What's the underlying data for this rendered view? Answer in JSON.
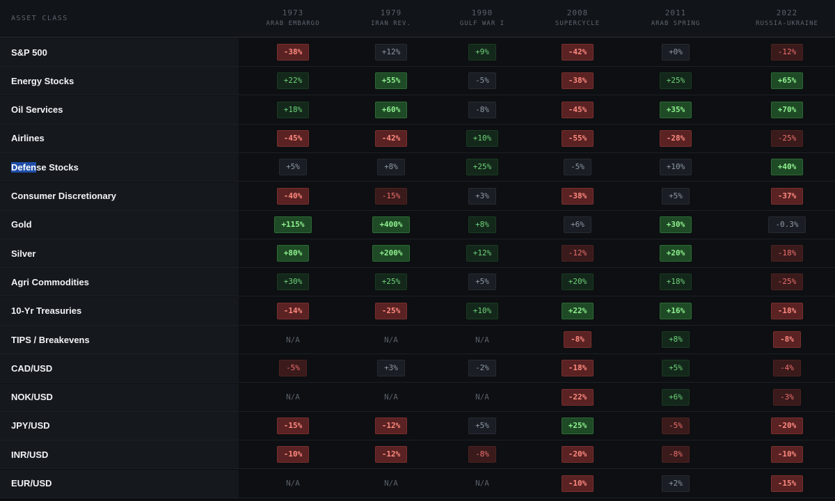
{
  "header": {
    "asset_class_label": "ASSET CLASS",
    "columns": [
      {
        "year": "1973",
        "event": "ARAB EMBARGO"
      },
      {
        "year": "1979",
        "event": "IRAN REV."
      },
      {
        "year": "1990",
        "event": "GULF WAR I"
      },
      {
        "year": "2008",
        "event": "SUPERCYCLE"
      },
      {
        "year": "2011",
        "event": "ARAB SPRING"
      },
      {
        "year": "2022",
        "event": "RUSSIA-UKRAINE"
      }
    ]
  },
  "selection": {
    "row": "Defense Stocks",
    "selected_text": "Defen"
  },
  "colors": {
    "strong_positive": "#8ff28f",
    "positive": "#6fd37a",
    "neutral": "#8f98a3",
    "negative": "#f07070",
    "strong_negative": "#ff8a80",
    "selection": "#1f4ea8"
  },
  "rows": [
    {
      "label": "S&P 500",
      "cells": [
        {
          "text": "-38%",
          "tone": "bigneg"
        },
        {
          "text": "+12%",
          "tone": "neu"
        },
        {
          "text": "+9%",
          "tone": "pos"
        },
        {
          "text": "-42%",
          "tone": "bigneg"
        },
        {
          "text": "+0%",
          "tone": "neu"
        },
        {
          "text": "-12%",
          "tone": "neg"
        }
      ]
    },
    {
      "label": "Energy Stocks",
      "cells": [
        {
          "text": "+22%",
          "tone": "pos"
        },
        {
          "text": "+55%",
          "tone": "bigpos"
        },
        {
          "text": "-5%",
          "tone": "neu"
        },
        {
          "text": "-38%",
          "tone": "bigneg"
        },
        {
          "text": "+25%",
          "tone": "pos"
        },
        {
          "text": "+65%",
          "tone": "bigpos"
        }
      ]
    },
    {
      "label": "Oil Services",
      "cells": [
        {
          "text": "+18%",
          "tone": "pos"
        },
        {
          "text": "+60%",
          "tone": "bigpos"
        },
        {
          "text": "-8%",
          "tone": "neu"
        },
        {
          "text": "-45%",
          "tone": "bigneg"
        },
        {
          "text": "+35%",
          "tone": "bigpos"
        },
        {
          "text": "+70%",
          "tone": "bigpos"
        }
      ]
    },
    {
      "label": "Airlines",
      "cells": [
        {
          "text": "-45%",
          "tone": "bigneg"
        },
        {
          "text": "-42%",
          "tone": "bigneg"
        },
        {
          "text": "+10%",
          "tone": "pos"
        },
        {
          "text": "-55%",
          "tone": "bigneg"
        },
        {
          "text": "-28%",
          "tone": "bigneg"
        },
        {
          "text": "-25%",
          "tone": "neg"
        }
      ]
    },
    {
      "label": "Defense Stocks",
      "cells": [
        {
          "text": "+5%",
          "tone": "neu"
        },
        {
          "text": "+8%",
          "tone": "neu"
        },
        {
          "text": "+25%",
          "tone": "pos"
        },
        {
          "text": "-5%",
          "tone": "neu"
        },
        {
          "text": "+10%",
          "tone": "neu"
        },
        {
          "text": "+40%",
          "tone": "bigpos"
        }
      ]
    },
    {
      "label": "Consumer Discretionary",
      "cells": [
        {
          "text": "-40%",
          "tone": "bigneg"
        },
        {
          "text": "-15%",
          "tone": "neg"
        },
        {
          "text": "+3%",
          "tone": "neu"
        },
        {
          "text": "-38%",
          "tone": "bigneg"
        },
        {
          "text": "+5%",
          "tone": "neu"
        },
        {
          "text": "-37%",
          "tone": "bigneg"
        }
      ]
    },
    {
      "label": "Gold",
      "cells": [
        {
          "text": "+115%",
          "tone": "bigpos"
        },
        {
          "text": "+400%",
          "tone": "bigpos"
        },
        {
          "text": "+8%",
          "tone": "pos"
        },
        {
          "text": "+6%",
          "tone": "neu"
        },
        {
          "text": "+30%",
          "tone": "bigpos"
        },
        {
          "text": "-0.3%",
          "tone": "neu"
        }
      ]
    },
    {
      "label": "Silver",
      "cells": [
        {
          "text": "+80%",
          "tone": "bigpos"
        },
        {
          "text": "+200%",
          "tone": "bigpos"
        },
        {
          "text": "+12%",
          "tone": "pos"
        },
        {
          "text": "-12%",
          "tone": "neg"
        },
        {
          "text": "+20%",
          "tone": "bigpos"
        },
        {
          "text": "-18%",
          "tone": "neg"
        }
      ]
    },
    {
      "label": "Agri Commodities",
      "cells": [
        {
          "text": "+30%",
          "tone": "pos"
        },
        {
          "text": "+25%",
          "tone": "pos"
        },
        {
          "text": "+5%",
          "tone": "neu"
        },
        {
          "text": "+20%",
          "tone": "pos"
        },
        {
          "text": "+18%",
          "tone": "pos"
        },
        {
          "text": "-25%",
          "tone": "neg"
        }
      ]
    },
    {
      "label": "10-Yr Treasuries",
      "cells": [
        {
          "text": "-14%",
          "tone": "bigneg"
        },
        {
          "text": "-25%",
          "tone": "bigneg"
        },
        {
          "text": "+10%",
          "tone": "pos"
        },
        {
          "text": "+22%",
          "tone": "bigpos"
        },
        {
          "text": "+16%",
          "tone": "bigpos"
        },
        {
          "text": "-18%",
          "tone": "bigneg"
        }
      ]
    },
    {
      "label": "TIPS / Breakevens",
      "cells": [
        {
          "text": "N/A",
          "tone": "na"
        },
        {
          "text": "N/A",
          "tone": "na"
        },
        {
          "text": "N/A",
          "tone": "na"
        },
        {
          "text": "-8%",
          "tone": "bigneg"
        },
        {
          "text": "+8%",
          "tone": "pos"
        },
        {
          "text": "-8%",
          "tone": "bigneg"
        }
      ]
    },
    {
      "label": "CAD/USD",
      "cells": [
        {
          "text": "-5%",
          "tone": "neg"
        },
        {
          "text": "+3%",
          "tone": "neu"
        },
        {
          "text": "-2%",
          "tone": "neu"
        },
        {
          "text": "-18%",
          "tone": "bigneg"
        },
        {
          "text": "+5%",
          "tone": "pos"
        },
        {
          "text": "-4%",
          "tone": "neg"
        }
      ]
    },
    {
      "label": "NOK/USD",
      "cells": [
        {
          "text": "N/A",
          "tone": "na"
        },
        {
          "text": "N/A",
          "tone": "na"
        },
        {
          "text": "N/A",
          "tone": "na"
        },
        {
          "text": "-22%",
          "tone": "bigneg"
        },
        {
          "text": "+6%",
          "tone": "pos"
        },
        {
          "text": "-3%",
          "tone": "neg"
        }
      ]
    },
    {
      "label": "JPY/USD",
      "cells": [
        {
          "text": "-15%",
          "tone": "bigneg"
        },
        {
          "text": "-12%",
          "tone": "bigneg"
        },
        {
          "text": "+5%",
          "tone": "neu"
        },
        {
          "text": "+25%",
          "tone": "bigpos"
        },
        {
          "text": "-5%",
          "tone": "neg"
        },
        {
          "text": "-20%",
          "tone": "bigneg"
        }
      ]
    },
    {
      "label": "INR/USD",
      "cells": [
        {
          "text": "-10%",
          "tone": "bigneg"
        },
        {
          "text": "-12%",
          "tone": "bigneg"
        },
        {
          "text": "-8%",
          "tone": "neg"
        },
        {
          "text": "-20%",
          "tone": "bigneg"
        },
        {
          "text": "-8%",
          "tone": "neg"
        },
        {
          "text": "-10%",
          "tone": "bigneg"
        }
      ]
    },
    {
      "label": "EUR/USD",
      "cells": [
        {
          "text": "N/A",
          "tone": "na"
        },
        {
          "text": "N/A",
          "tone": "na"
        },
        {
          "text": "N/A",
          "tone": "na"
        },
        {
          "text": "-10%",
          "tone": "bigneg"
        },
        {
          "text": "+2%",
          "tone": "neu"
        },
        {
          "text": "-15%",
          "tone": "bigneg"
        }
      ]
    }
  ]
}
